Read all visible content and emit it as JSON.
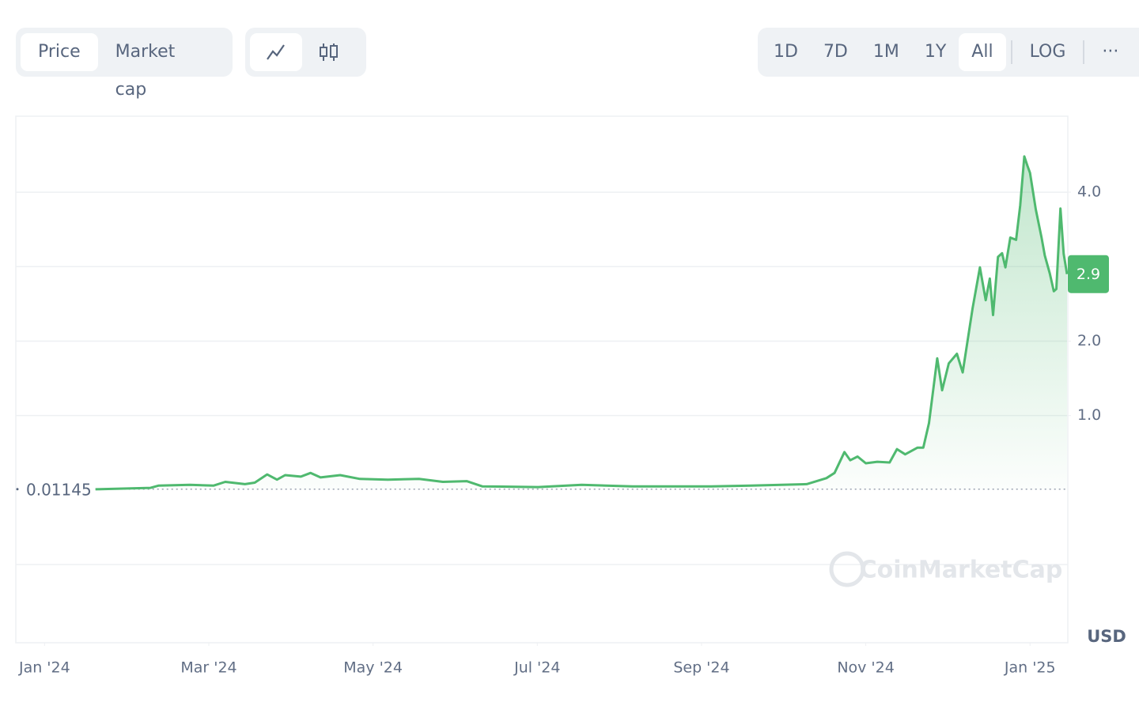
{
  "toolbar": {
    "view_tabs": [
      "Price",
      "Market cap"
    ],
    "ranges": [
      "1D",
      "7D",
      "1M",
      "1Y",
      "All"
    ],
    "scale": "LOG",
    "more": "···"
  },
  "chart_data": {
    "type": "line",
    "color": "#4fb96f",
    "x": [
      0.62,
      1.29,
      1.39,
      1.77,
      2.06,
      2.2,
      2.44,
      2.56,
      2.71,
      2.83,
      2.93,
      3.12,
      3.24,
      3.36,
      3.6,
      3.84,
      4.18,
      4.56,
      4.85,
      5.14,
      5.33,
      6.01,
      6.54,
      7.16,
      8.12,
      8.6,
      9.28,
      9.52,
      9.62,
      9.74,
      9.81,
      9.9,
      10.0,
      10.14,
      10.29,
      10.38,
      10.48,
      10.63,
      10.7,
      10.77,
      10.87,
      10.93,
      11.01,
      11.11,
      11.18,
      11.3,
      11.39,
      11.46,
      11.51,
      11.55,
      11.61,
      11.66,
      11.7,
      11.76,
      11.83,
      11.88,
      11.93,
      11.97,
      12.0,
      12.07,
      12.14,
      12.18,
      12.24,
      12.29,
      12.32,
      12.37,
      12.41,
      12.45
    ],
    "values": [
      0.01,
      0.03,
      0.06,
      0.07,
      0.06,
      0.11,
      0.08,
      0.1,
      0.21,
      0.14,
      0.2,
      0.18,
      0.23,
      0.17,
      0.2,
      0.15,
      0.14,
      0.15,
      0.11,
      0.12,
      0.05,
      0.04,
      0.07,
      0.05,
      0.05,
      0.06,
      0.08,
      0.16,
      0.23,
      0.51,
      0.4,
      0.45,
      0.36,
      0.38,
      0.37,
      0.55,
      0.48,
      0.57,
      0.57,
      0.9,
      1.77,
      1.34,
      1.7,
      1.83,
      1.58,
      2.44,
      2.99,
      2.55,
      2.84,
      2.35,
      3.13,
      3.18,
      2.99,
      3.39,
      3.36,
      3.82,
      4.48,
      4.35,
      4.26,
      3.77,
      3.39,
      3.15,
      2.91,
      2.67,
      2.7,
      3.78,
      3.17,
      2.9
    ],
    "xlim": [
      -0.35,
      12.46
    ],
    "xticks": [
      {
        "value": 0,
        "label": "Jan '24"
      },
      {
        "value": 2,
        "label": "Mar '24"
      },
      {
        "value": 4,
        "label": "May '24"
      },
      {
        "value": 6,
        "label": "Jul '24"
      },
      {
        "value": 8,
        "label": "Sep '24"
      },
      {
        "value": 10,
        "label": "Nov '24"
      },
      {
        "value": 12,
        "label": "Jan '25"
      }
    ],
    "ylim": [
      -2.05,
      5.02
    ],
    "yticks": [
      {
        "value": 1,
        "label": "1.0"
      },
      {
        "value": 2,
        "label": "2.0"
      },
      {
        "value": 4,
        "label": "4.0"
      }
    ],
    "gridlines": [
      -1,
      1,
      2,
      3,
      4
    ],
    "baseline": 0.01145,
    "current_price": 2.9,
    "unit": "USD",
    "watermark": "CoinMarketCap"
  }
}
